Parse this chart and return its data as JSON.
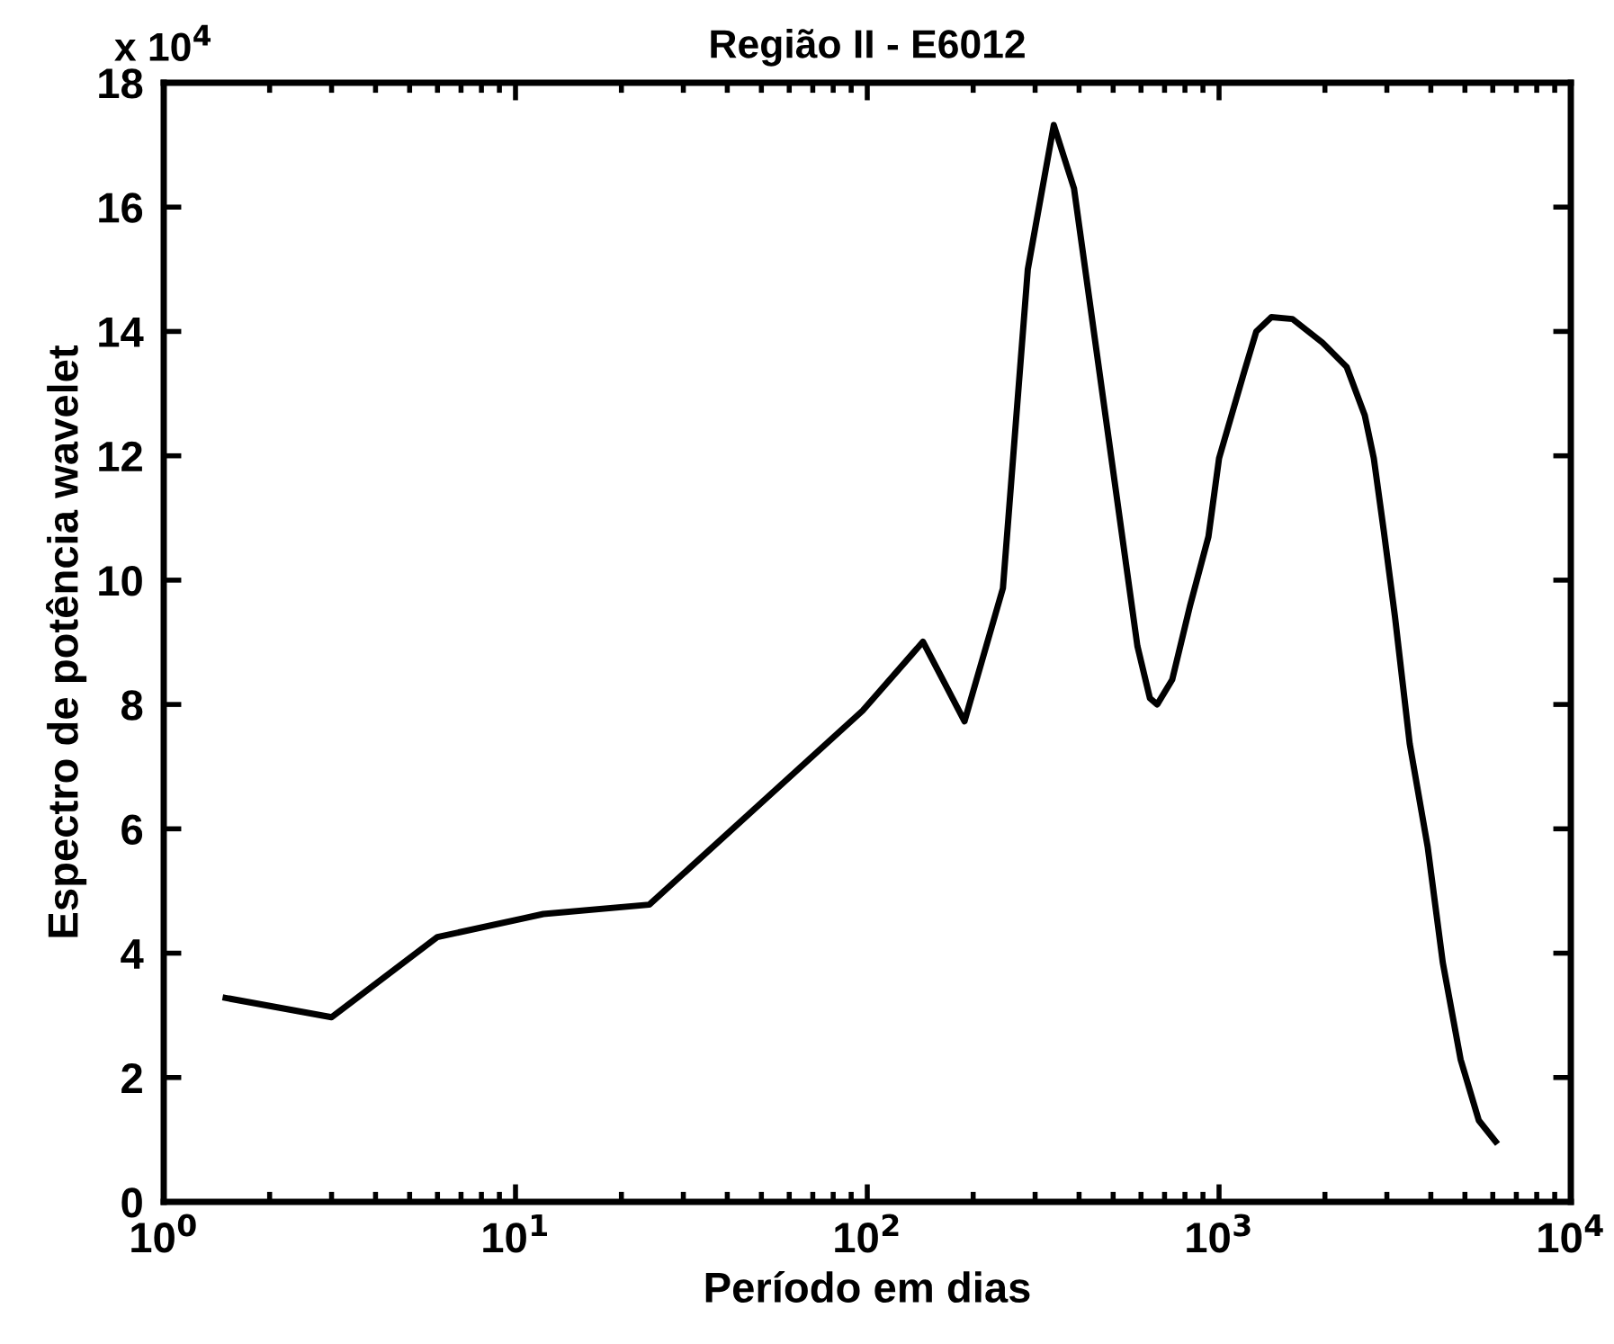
{
  "chart_data": {
    "type": "line",
    "title": "Região II - E6012",
    "xlabel": "Período em dias",
    "ylabel": "Espectro de potência wavelet",
    "annotations": [
      "x 10$^{4}$"
    ],
    "log": "x",
    "x": [
      1.5,
      3,
      6,
      12,
      24,
      97,
      144,
      189,
      243,
      286,
      339,
      387,
      586,
      636,
      667,
      736,
      828,
      933,
      1000,
      1176,
      1276,
      1409,
      1617,
      1968,
      2305,
      2596,
      2754,
      2940,
      3162,
      3483,
      3918,
      4325,
      4861,
      5476,
      6113
    ],
    "series": [
      {
        "color": "#000000",
        "values": [
          3.28,
          2.97,
          4.26,
          4.63,
          4.78,
          7.9,
          9.01,
          7.73,
          9.87,
          15.0,
          17.32,
          16.3,
          8.94,
          8.1,
          8.0,
          8.4,
          9.6,
          10.7,
          11.96,
          13.33,
          14.0,
          14.23,
          14.2,
          13.82,
          13.43,
          12.65,
          11.96,
          10.79,
          9.42,
          7.37,
          5.71,
          3.85,
          2.29,
          1.31,
          0.97
        ]
      }
    ],
    "xlim": [
      1,
      10000
    ],
    "xticks": [
      {
        "value": 1,
        "label": "10$^{0}$"
      },
      {
        "value": 10,
        "label": "10$^{1}$"
      },
      {
        "value": 100,
        "label": "10$^{2}$"
      },
      {
        "value": 1000,
        "label": "10$^{3}$"
      },
      {
        "value": 10000,
        "label": "10$^{4}$"
      }
    ],
    "ylim": [
      0,
      18
    ],
    "yticks": [
      0,
      2,
      4,
      6,
      8,
      10,
      12,
      14,
      16,
      18
    ],
    "grid": false,
    "marker": "none",
    "line_style": "solid"
  }
}
